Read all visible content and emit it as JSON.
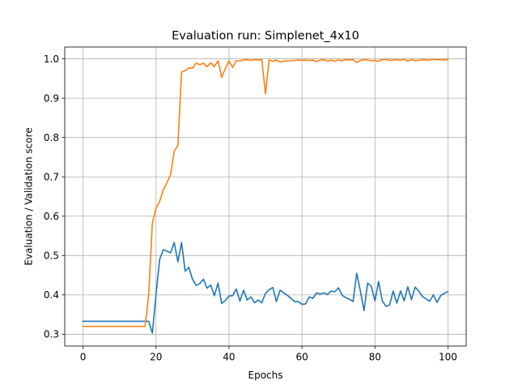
{
  "chart_data": {
    "type": "line",
    "title": "Evaluation run: Simplenet_4x10",
    "xlabel": "Epochs",
    "ylabel": "Evaluation / Validation score",
    "xlim": [
      -5,
      105
    ],
    "ylim": [
      0.27,
      1.03
    ],
    "xticks": [
      0,
      20,
      40,
      60,
      80,
      100
    ],
    "yticks": [
      0.3,
      0.4,
      0.5,
      0.6,
      0.7,
      0.8,
      0.9,
      1.0
    ],
    "xtick_labels": [
      "0",
      "20",
      "40",
      "60",
      "80",
      "100"
    ],
    "ytick_labels": [
      "0.3",
      "0.4",
      "0.5",
      "0.6",
      "0.7",
      "0.8",
      "0.9",
      "1.0"
    ],
    "grid": true,
    "legend": "none",
    "x": [
      0,
      1,
      2,
      3,
      4,
      5,
      6,
      7,
      8,
      9,
      10,
      11,
      12,
      13,
      14,
      15,
      16,
      17,
      18,
      19,
      20,
      21,
      22,
      23,
      24,
      25,
      26,
      27,
      28,
      29,
      30,
      31,
      32,
      33,
      34,
      35,
      36,
      37,
      38,
      39,
      40,
      41,
      42,
      43,
      44,
      45,
      46,
      47,
      48,
      49,
      50,
      51,
      52,
      53,
      54,
      55,
      56,
      57,
      58,
      59,
      60,
      61,
      62,
      63,
      64,
      65,
      66,
      67,
      68,
      69,
      70,
      71,
      72,
      73,
      74,
      75,
      76,
      77,
      78,
      79,
      80,
      81,
      82,
      83,
      84,
      85,
      86,
      87,
      88,
      89,
      90,
      91,
      92,
      93,
      94,
      95,
      96,
      97,
      98,
      99,
      100
    ],
    "series": [
      {
        "color": "#1f77b4",
        "values": [
          0.333,
          0.333,
          0.333,
          0.333,
          0.333,
          0.333,
          0.333,
          0.333,
          0.333,
          0.333,
          0.333,
          0.333,
          0.333,
          0.333,
          0.333,
          0.333,
          0.333,
          0.333,
          0.333,
          0.303,
          0.4,
          0.49,
          0.515,
          0.511,
          0.507,
          0.533,
          0.484,
          0.533,
          0.46,
          0.47,
          0.44,
          0.424,
          0.429,
          0.44,
          0.417,
          0.425,
          0.398,
          0.43,
          0.378,
          0.386,
          0.397,
          0.398,
          0.415,
          0.384,
          0.412,
          0.387,
          0.395,
          0.38,
          0.387,
          0.38,
          0.404,
          0.413,
          0.419,
          0.383,
          0.412,
          0.405,
          0.399,
          0.391,
          0.383,
          0.383,
          0.376,
          0.377,
          0.395,
          0.391,
          0.405,
          0.402,
          0.405,
          0.401,
          0.41,
          0.408,
          0.418,
          0.399,
          0.393,
          0.389,
          0.383,
          0.455,
          0.41,
          0.36,
          0.43,
          0.422,
          0.385,
          0.434,
          0.385,
          0.371,
          0.374,
          0.41,
          0.379,
          0.41,
          0.385,
          0.421,
          0.388,
          0.42,
          0.41,
          0.396,
          0.39,
          0.384,
          0.4,
          0.381,
          0.398,
          0.404,
          0.408
        ]
      },
      {
        "color": "#ff7f0e",
        "values": [
          0.32,
          0.32,
          0.32,
          0.32,
          0.32,
          0.32,
          0.32,
          0.32,
          0.32,
          0.32,
          0.32,
          0.32,
          0.32,
          0.32,
          0.32,
          0.32,
          0.32,
          0.32,
          0.4,
          0.582,
          0.62,
          0.638,
          0.667,
          0.685,
          0.706,
          0.765,
          0.78,
          0.966,
          0.97,
          0.977,
          0.976,
          0.989,
          0.985,
          0.989,
          0.98,
          0.99,
          0.98,
          0.995,
          0.953,
          0.975,
          0.995,
          0.978,
          0.995,
          0.995,
          0.997,
          0.998,
          0.996,
          0.998,
          0.997,
          0.998,
          0.911,
          0.997,
          0.994,
          0.997,
          0.992,
          0.994,
          0.995,
          0.995,
          0.996,
          0.997,
          0.996,
          0.997,
          0.996,
          0.997,
          0.993,
          0.997,
          0.998,
          0.994,
          0.997,
          0.994,
          0.997,
          0.995,
          0.998,
          0.997,
          0.998,
          0.991,
          0.996,
          0.998,
          0.997,
          0.995,
          0.996,
          0.994,
          0.998,
          0.999,
          0.996,
          0.997,
          0.998,
          0.996,
          0.999,
          0.994,
          0.998,
          0.995,
          0.996,
          0.998,
          0.997,
          0.997,
          0.999,
          0.998,
          0.998,
          0.997,
          0.998
        ]
      }
    ]
  }
}
